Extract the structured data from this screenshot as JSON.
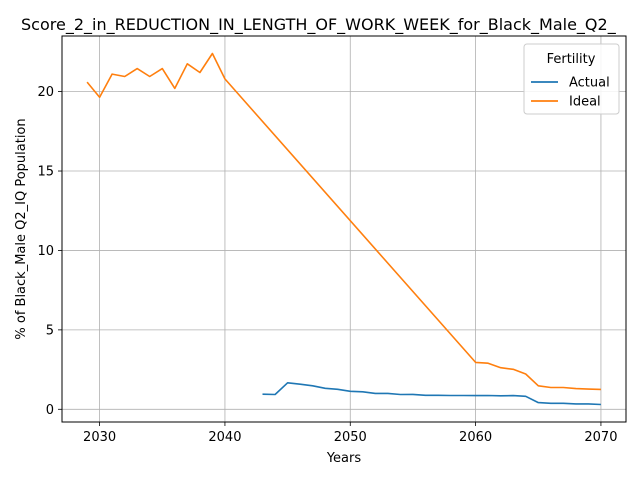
{
  "chart_data": {
    "type": "line",
    "title": "Score_2_in_REDUCTION_IN_LENGTH_OF_WORK_WEEK_for_Black_Male_Q2_",
    "xlabel": "Years",
    "ylabel": "% of Black_Male Q2_IQ Population",
    "xlim": [
      2027,
      2072
    ],
    "ylim": [
      -0.8,
      23.5
    ],
    "xticks": [
      2030,
      2040,
      2050,
      2060,
      2070
    ],
    "yticks": [
      0,
      5,
      10,
      15,
      20
    ],
    "grid": true,
    "legend": {
      "title": "Fertility",
      "placement": "top-right"
    },
    "series": [
      {
        "name": "Actual",
        "color": "#1f77b4",
        "x": [
          2043,
          2044,
          2045,
          2046,
          2047,
          2048,
          2049,
          2050,
          2051,
          2052,
          2053,
          2054,
          2055,
          2056,
          2057,
          2058,
          2059,
          2060,
          2061,
          2062,
          2063,
          2064,
          2065,
          2066,
          2067,
          2068,
          2069,
          2070
        ],
        "y": [
          0.95,
          0.93,
          1.67,
          1.58,
          1.48,
          1.32,
          1.26,
          1.13,
          1.1,
          1.0,
          1.0,
          0.93,
          0.94,
          0.88,
          0.88,
          0.87,
          0.87,
          0.86,
          0.87,
          0.85,
          0.86,
          0.82,
          0.42,
          0.38,
          0.38,
          0.34,
          0.34,
          0.3
        ]
      },
      {
        "name": "Ideal",
        "color": "#ff7f0e",
        "x": [
          2029,
          2030,
          2031,
          2032,
          2033,
          2034,
          2035,
          2036,
          2037,
          2038,
          2039,
          2040,
          2060,
          2061,
          2062,
          2063,
          2064,
          2065,
          2066,
          2067,
          2068,
          2069,
          2070
        ],
        "y": [
          20.6,
          19.65,
          21.1,
          20.95,
          21.45,
          20.95,
          21.45,
          20.2,
          21.75,
          21.2,
          22.4,
          20.8,
          2.95,
          2.9,
          2.62,
          2.52,
          2.22,
          1.48,
          1.37,
          1.37,
          1.3,
          1.27,
          1.25
        ]
      }
    ]
  }
}
